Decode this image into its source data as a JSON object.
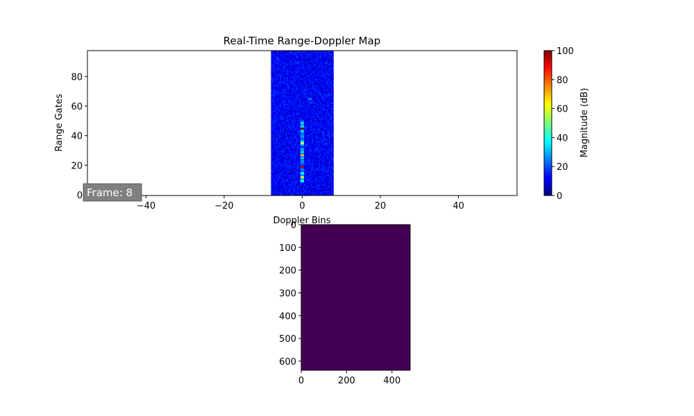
{
  "colors": {
    "frame_box": "#808080",
    "frame_text": "#ffffff",
    "map_background": "#0a0aa8",
    "second_image_fill": "#440154"
  },
  "chart_data": [
    {
      "type": "heatmap",
      "title": "Real-Time Range-Doppler Map",
      "xlabel": "Doppler Bins",
      "ylabel": "Range Gates",
      "xlim": [
        -55,
        55
      ],
      "ylim": [
        -0.5,
        97.5
      ],
      "data_extent_x": [
        -8,
        8
      ],
      "data_extent_y": [
        -0.5,
        97.5
      ],
      "x_ticks": [
        -40,
        -20,
        0,
        20,
        40
      ],
      "y_ticks": [
        0,
        20,
        40,
        60,
        80
      ],
      "colormap": "jet",
      "grid": false,
      "annotation": "Frame: 8",
      "annotation_position": "bottom-left",
      "hot_column_doppler_bin": 0,
      "hot_column_range_gates": [
        9,
        50
      ],
      "peaks": [
        {
          "doppler": 0,
          "range": 45,
          "value": 100
        },
        {
          "doppler": 0,
          "range": 19,
          "value": 95
        },
        {
          "doppler": 0,
          "range": 27,
          "value": 70
        },
        {
          "doppler": 0,
          "range": 35,
          "value": 55
        },
        {
          "doppler": 0,
          "range": 12,
          "value": 60
        },
        {
          "doppler": 0,
          "range": 10,
          "value": 40
        },
        {
          "doppler": 2,
          "range": 65,
          "value": 25
        },
        {
          "doppler": 0,
          "range": 48,
          "value": 30
        }
      ],
      "colorbar": {
        "label": "Magnitude (dB)",
        "range": [
          0,
          100
        ],
        "ticks": [
          0,
          20,
          40,
          60,
          80,
          100
        ]
      }
    },
    {
      "type": "heatmap",
      "title": "",
      "xlabel": "",
      "ylabel": "",
      "xlim": [
        0,
        480
      ],
      "ylim": [
        640,
        0
      ],
      "x_ticks": [
        0,
        200,
        400
      ],
      "y_ticks": [
        0,
        100,
        200,
        300,
        400,
        500,
        600
      ],
      "colormap": "viridis",
      "uniform_value": 0,
      "grid": false
    }
  ]
}
